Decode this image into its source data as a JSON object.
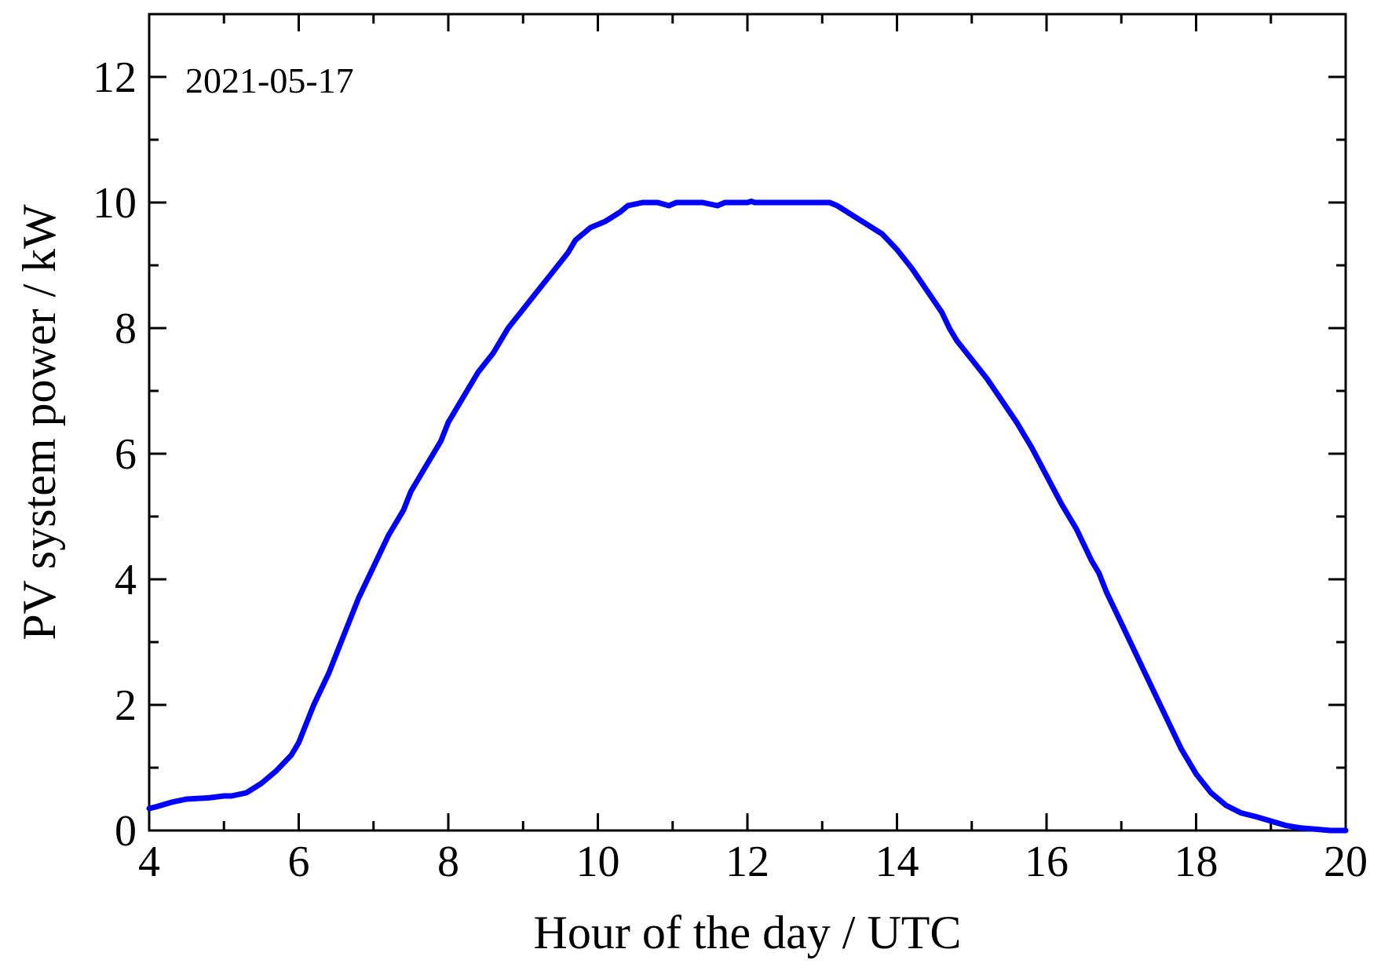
{
  "chart_data": {
    "type": "line",
    "annotation": "2021-05-17",
    "xlabel": "Hour of the day / UTC",
    "ylabel": "PV system power / kW",
    "xlim": [
      4,
      20
    ],
    "ylim": [
      0,
      13
    ],
    "xticks": [
      4,
      6,
      8,
      10,
      12,
      14,
      16,
      18,
      20
    ],
    "yticks": [
      0,
      2,
      4,
      6,
      8,
      10,
      12
    ],
    "grid": false,
    "line_color": "#0000ff",
    "series": [
      {
        "x": [
          4.0,
          4.1,
          4.3,
          4.5,
          4.8,
          5.0,
          5.1,
          5.3,
          5.5,
          5.7,
          5.9,
          6.0,
          6.2,
          6.4,
          6.6,
          6.8,
          7.0,
          7.2,
          7.4,
          7.5,
          7.7,
          7.9,
          8.0,
          8.2,
          8.4,
          8.6,
          8.8,
          9.0,
          9.2,
          9.4,
          9.6,
          9.7,
          9.9,
          10.1,
          10.3,
          10.4,
          10.6,
          10.8,
          10.95,
          11.05,
          11.2,
          11.4,
          11.6,
          11.7,
          11.8,
          12.0,
          12.05,
          12.1,
          12.4,
          12.8,
          13.1,
          13.2,
          13.4,
          13.6,
          13.8,
          14.0,
          14.2,
          14.4,
          14.6,
          14.7,
          14.8,
          15.0,
          15.2,
          15.4,
          15.6,
          15.8,
          16.0,
          16.2,
          16.4,
          16.6,
          16.7,
          16.8,
          17.0,
          17.2,
          17.4,
          17.6,
          17.8,
          18.0,
          18.2,
          18.4,
          18.6,
          18.8,
          19.0,
          19.2,
          19.4,
          19.6,
          19.8,
          20.0
        ],
        "y": [
          0.35,
          0.38,
          0.45,
          0.5,
          0.52,
          0.55,
          0.55,
          0.6,
          0.75,
          0.95,
          1.2,
          1.4,
          2.0,
          2.5,
          3.1,
          3.7,
          4.2,
          4.7,
          5.1,
          5.4,
          5.8,
          6.2,
          6.5,
          6.9,
          7.3,
          7.6,
          8.0,
          8.3,
          8.6,
          8.9,
          9.2,
          9.4,
          9.6,
          9.7,
          9.85,
          9.95,
          10.0,
          10.0,
          9.95,
          10.0,
          10.0,
          10.0,
          9.95,
          10.0,
          10.0,
          10.0,
          10.02,
          10.0,
          10.0,
          10.0,
          10.0,
          9.95,
          9.8,
          9.65,
          9.5,
          9.25,
          8.95,
          8.6,
          8.25,
          8.0,
          7.8,
          7.5,
          7.2,
          6.85,
          6.5,
          6.1,
          5.65,
          5.2,
          4.8,
          4.3,
          4.1,
          3.8,
          3.3,
          2.8,
          2.3,
          1.8,
          1.3,
          0.9,
          0.6,
          0.4,
          0.28,
          0.22,
          0.15,
          0.08,
          0.04,
          0.02,
          0.0,
          0.0
        ]
      }
    ]
  }
}
